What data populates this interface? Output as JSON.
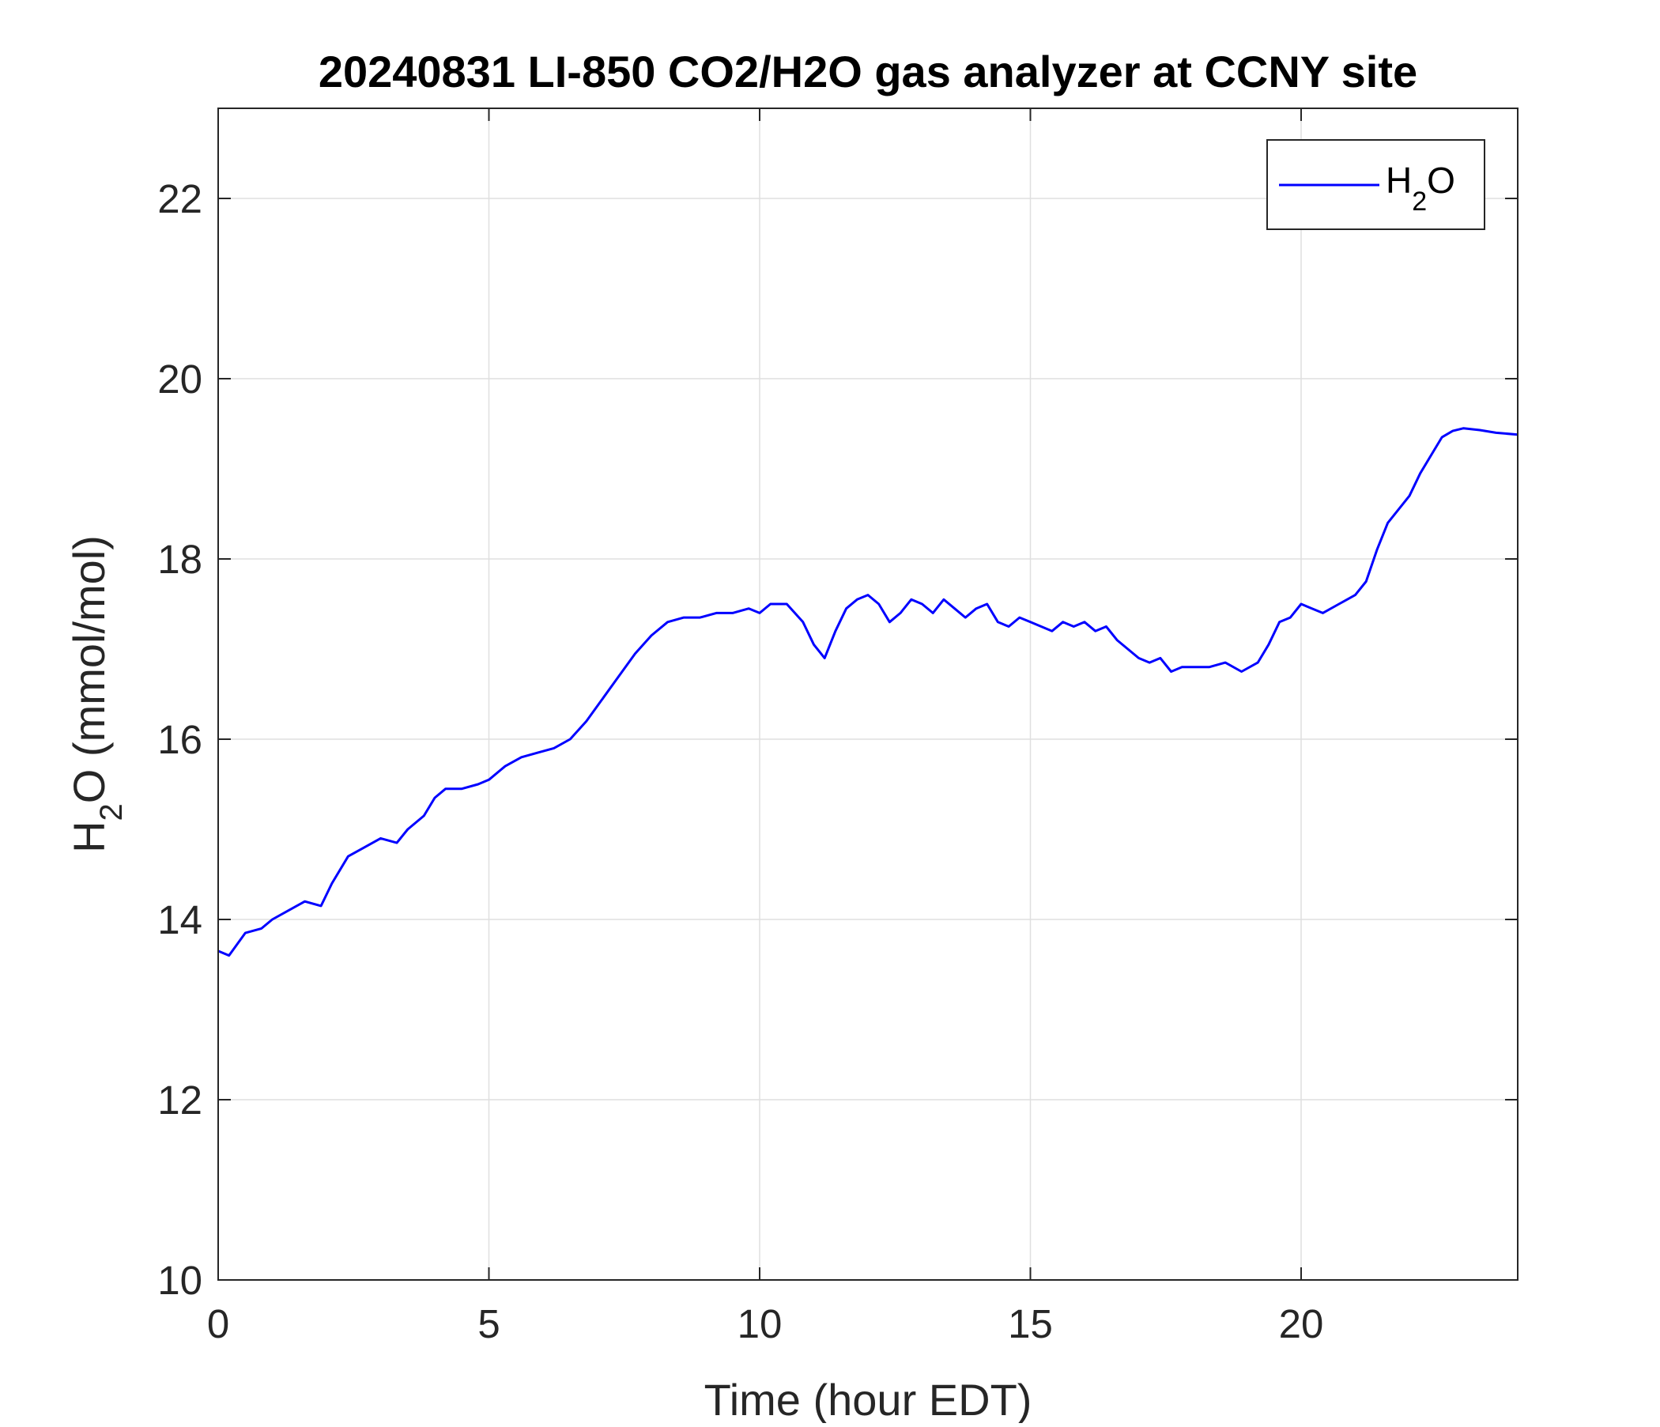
{
  "chart_data": {
    "type": "line",
    "title": "20240831 LI-850 CO2/H2O gas analyzer at CCNY site",
    "xlabel": "Time (hour EDT)",
    "ylabel": {
      "base": "H",
      "sub": "2",
      "rest": "O (mmol/mol)"
    },
    "xlim": [
      0,
      24
    ],
    "ylim": [
      10,
      23
    ],
    "x_ticks": [
      "0",
      "5",
      "10",
      "15",
      "20"
    ],
    "y_ticks": [
      "10",
      "12",
      "14",
      "16",
      "18",
      "20",
      "22"
    ],
    "grid": true,
    "legend_position": "top-right",
    "colors": {
      "series": "#0000ff",
      "axes": "#262626",
      "grid": "#dfdfdf"
    },
    "series": [
      {
        "name": {
          "base": "H",
          "sub": "2",
          "rest": "O"
        },
        "x": [
          0,
          0.2,
          0.5,
          0.8,
          1.0,
          1.3,
          1.6,
          1.9,
          2.1,
          2.4,
          2.7,
          3.0,
          3.3,
          3.5,
          3.8,
          4.0,
          4.2,
          4.5,
          4.8,
          5.0,
          5.3,
          5.6,
          5.9,
          6.2,
          6.5,
          6.8,
          7.1,
          7.4,
          7.7,
          8.0,
          8.3,
          8.6,
          8.9,
          9.2,
          9.5,
          9.8,
          10.0,
          10.2,
          10.5,
          10.8,
          11.0,
          11.2,
          11.4,
          11.6,
          11.8,
          12.0,
          12.2,
          12.4,
          12.6,
          12.8,
          13.0,
          13.2,
          13.4,
          13.6,
          13.8,
          14.0,
          14.2,
          14.4,
          14.6,
          14.8,
          15.0,
          15.2,
          15.4,
          15.6,
          15.8,
          16.0,
          16.2,
          16.4,
          16.6,
          16.8,
          17.0,
          17.2,
          17.4,
          17.6,
          17.8,
          18.0,
          18.3,
          18.6,
          18.9,
          19.2,
          19.4,
          19.6,
          19.8,
          20.0,
          20.2,
          20.4,
          20.7,
          21.0,
          21.2,
          21.4,
          21.6,
          21.8,
          22.0,
          22.2,
          22.4,
          22.6,
          22.8,
          23.0,
          23.3,
          23.6,
          24.0
        ],
        "values": [
          13.65,
          13.6,
          13.85,
          13.9,
          14.0,
          14.1,
          14.2,
          14.15,
          14.4,
          14.7,
          14.8,
          14.9,
          14.85,
          15.0,
          15.15,
          15.35,
          15.45,
          15.45,
          15.5,
          15.55,
          15.7,
          15.8,
          15.85,
          15.9,
          16.0,
          16.2,
          16.45,
          16.7,
          16.95,
          17.15,
          17.3,
          17.35,
          17.35,
          17.4,
          17.4,
          17.45,
          17.4,
          17.5,
          17.5,
          17.3,
          17.05,
          16.9,
          17.2,
          17.45,
          17.55,
          17.6,
          17.5,
          17.3,
          17.4,
          17.55,
          17.5,
          17.4,
          17.55,
          17.45,
          17.35,
          17.45,
          17.5,
          17.3,
          17.25,
          17.35,
          17.3,
          17.25,
          17.2,
          17.3,
          17.25,
          17.3,
          17.2,
          17.25,
          17.1,
          17.0,
          16.9,
          16.85,
          16.9,
          16.75,
          16.8,
          16.8,
          16.8,
          16.85,
          16.75,
          16.85,
          17.05,
          17.3,
          17.35,
          17.5,
          17.45,
          17.4,
          17.5,
          17.6,
          17.75,
          18.1,
          18.4,
          18.55,
          18.7,
          18.95,
          19.15,
          19.35,
          19.42,
          19.45,
          19.43,
          19.4,
          19.38
        ]
      }
    ]
  }
}
